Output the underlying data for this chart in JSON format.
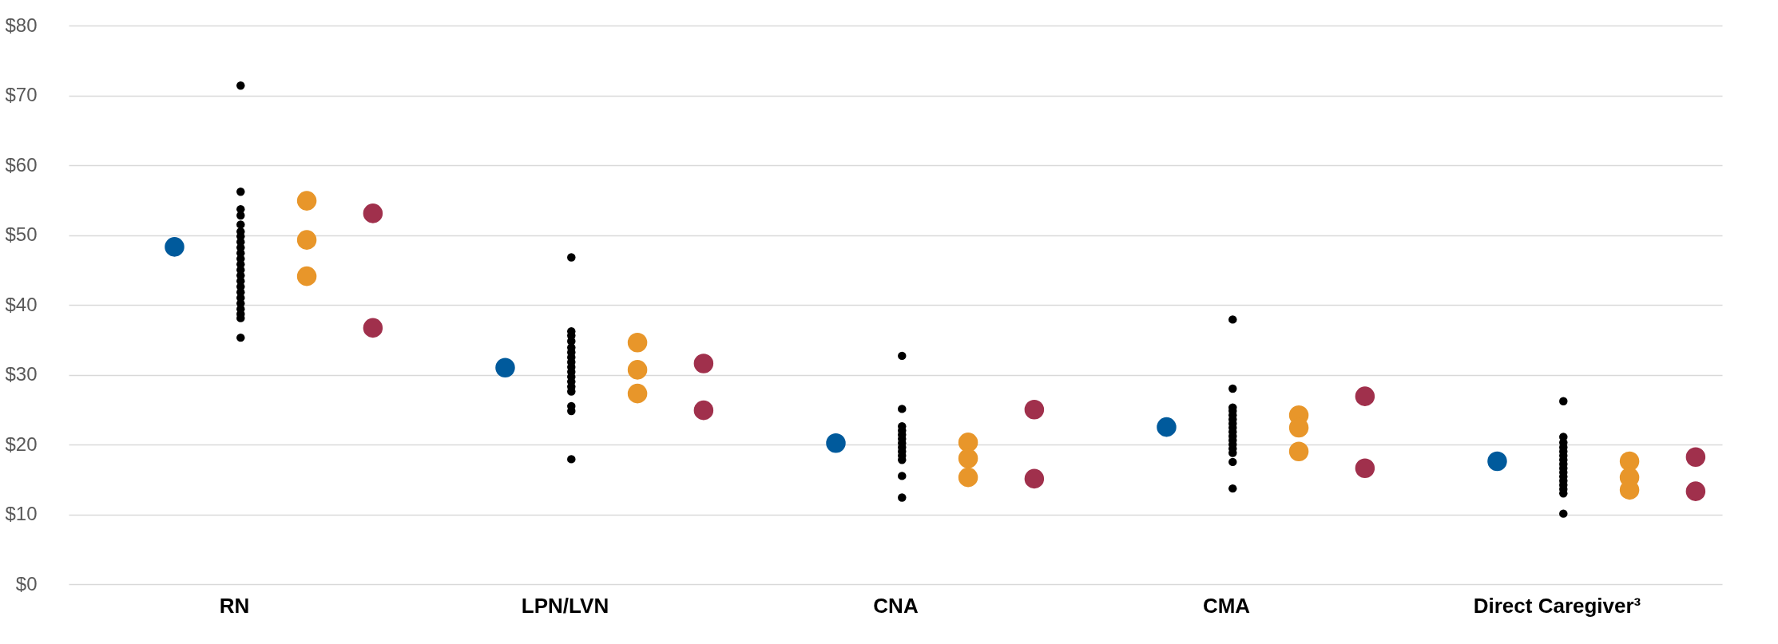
{
  "chart_data": {
    "type": "scatter",
    "categories": [
      "RN",
      "LPN/LVN",
      "CNA",
      "CMA",
      "Direct Caregiver³"
    ],
    "series": [
      {
        "color": "#005a9c",
        "x": [
          "RN",
          "LPN/LVN",
          "CNA",
          "CMA",
          "Direct Caregiver³"
        ],
        "values": [
          48.3,
          31.0,
          20.2,
          22.5,
          17.6
        ]
      },
      {
        "color": "#000000",
        "x": [
          "RN",
          "RN",
          "RN",
          "RN",
          "RN",
          "RN",
          "RN",
          "RN",
          "RN",
          "RN",
          "RN",
          "RN",
          "RN",
          "RN",
          "RN",
          "RN",
          "RN",
          "RN",
          "RN",
          "RN",
          "RN",
          "RN",
          "RN",
          "LPN/LVN",
          "LPN/LVN",
          "LPN/LVN",
          "LPN/LVN",
          "LPN/LVN",
          "LPN/LVN",
          "LPN/LVN",
          "LPN/LVN",
          "LPN/LVN",
          "LPN/LVN",
          "LPN/LVN",
          "LPN/LVN",
          "LPN/LVN",
          "LPN/LVN",
          "LPN/LVN",
          "LPN/LVN",
          "LPN/LVN",
          "CNA",
          "CNA",
          "CNA",
          "CNA",
          "CNA",
          "CNA",
          "CNA",
          "CNA",
          "CNA",
          "CNA",
          "CNA",
          "CNA",
          "CNA",
          "CMA",
          "CMA",
          "CMA",
          "CMA",
          "CMA",
          "CMA",
          "CMA",
          "CMA",
          "CMA",
          "CMA",
          "CMA",
          "CMA",
          "CMA",
          "CMA",
          "CMA",
          "CMA",
          "Direct Caregiver³",
          "Direct Caregiver³",
          "Direct Caregiver³",
          "Direct Caregiver³",
          "Direct Caregiver³",
          "Direct Caregiver³",
          "Direct Caregiver³",
          "Direct Caregiver³",
          "Direct Caregiver³",
          "Direct Caregiver³",
          "Direct Caregiver³",
          "Direct Caregiver³",
          "Direct Caregiver³",
          "Direct Caregiver³",
          "Direct Caregiver³",
          "Direct Caregiver³"
        ],
        "values": [
          71.4,
          56.2,
          53.7,
          52.8,
          51.5,
          50.5,
          49.8,
          49.0,
          48.2,
          47.4,
          46.6,
          45.8,
          45.0,
          44.2,
          43.4,
          42.6,
          41.8,
          41.0,
          40.2,
          39.4,
          38.7,
          38.1,
          35.3,
          46.8,
          36.2,
          35.6,
          34.8,
          33.9,
          33.2,
          32.5,
          31.8,
          31.1,
          30.4,
          29.7,
          29.0,
          28.3,
          27.6,
          25.5,
          24.8,
          17.9,
          32.7,
          25.1,
          22.6,
          22.0,
          21.4,
          20.8,
          20.2,
          19.6,
          19.0,
          18.4,
          17.8,
          15.5,
          12.4,
          37.9,
          28.0,
          25.3,
          24.8,
          24.2,
          23.6,
          23.0,
          22.4,
          21.8,
          21.2,
          20.6,
          20.0,
          19.4,
          18.8,
          17.5,
          13.7,
          26.2,
          21.1,
          20.3,
          19.6,
          19.0,
          18.4,
          17.8,
          17.2,
          16.6,
          16.0,
          15.4,
          14.8,
          14.2,
          13.6,
          13.0,
          10.1
        ]
      },
      {
        "color": "#e8962a",
        "x": [
          "RN",
          "RN",
          "RN",
          "LPN/LVN",
          "LPN/LVN",
          "LPN/LVN",
          "CNA",
          "CNA",
          "CNA",
          "CMA",
          "CMA",
          "CMA",
          "Direct Caregiver³",
          "Direct Caregiver³",
          "Direct Caregiver³"
        ],
        "values": [
          54.9,
          49.3,
          44.1,
          34.6,
          30.7,
          27.3,
          20.3,
          18.0,
          15.3,
          24.2,
          22.4,
          19.0,
          17.6,
          15.3,
          13.5
        ]
      },
      {
        "color": "#a0304c",
        "x": [
          "RN",
          "RN",
          "LPN/LVN",
          "LPN/LVN",
          "CNA",
          "CNA",
          "CMA",
          "CMA",
          "Direct Caregiver³",
          "Direct Caregiver³"
        ],
        "values": [
          53.1,
          36.7,
          31.6,
          24.9,
          25.0,
          15.1,
          26.9,
          16.6,
          18.2,
          13.3
        ]
      }
    ],
    "ylim": [
      0,
      80
    ],
    "yticks": [
      {
        "value": 0,
        "label": "$0"
      },
      {
        "value": 10,
        "label": "$10"
      },
      {
        "value": 20,
        "label": "$20"
      },
      {
        "value": 30,
        "label": "$30"
      },
      {
        "value": 40,
        "label": "$40"
      },
      {
        "value": 50,
        "label": "$50"
      },
      {
        "value": 60,
        "label": "$60"
      },
      {
        "value": 70,
        "label": "$70"
      },
      {
        "value": 80,
        "label": "$80"
      }
    ],
    "grid": "y",
    "marker": "circle"
  }
}
